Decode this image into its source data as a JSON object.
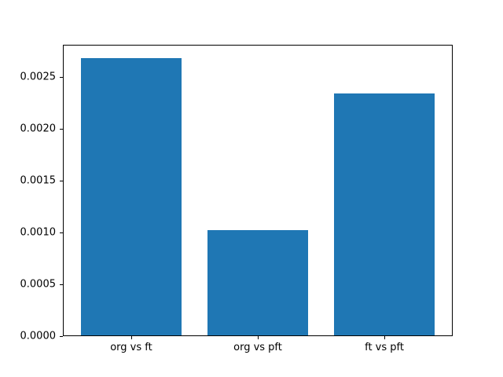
{
  "figure": {
    "background": "#ffffff",
    "spine_color": "#000000",
    "text_color": "#000000"
  },
  "chart_data": {
    "type": "bar",
    "title": "",
    "xlabel": "",
    "ylabel": "",
    "categories": [
      "org vs ft",
      "org vs pft",
      "ft vs pft"
    ],
    "values": [
      0.00268,
      0.00102,
      0.00234
    ],
    "bar_color": "#1f77b4",
    "bar_width": 0.8,
    "xlim": [
      -0.54,
      2.54
    ],
    "ylim": [
      0,
      0.00281
    ],
    "yticks": [
      0.0,
      0.0005,
      0.001,
      0.0015,
      0.002,
      0.0025
    ],
    "ytick_labels": [
      "0.0000",
      "0.0005",
      "0.0010",
      "0.0015",
      "0.0020",
      "0.0025"
    ],
    "grid": false,
    "legend": null
  }
}
